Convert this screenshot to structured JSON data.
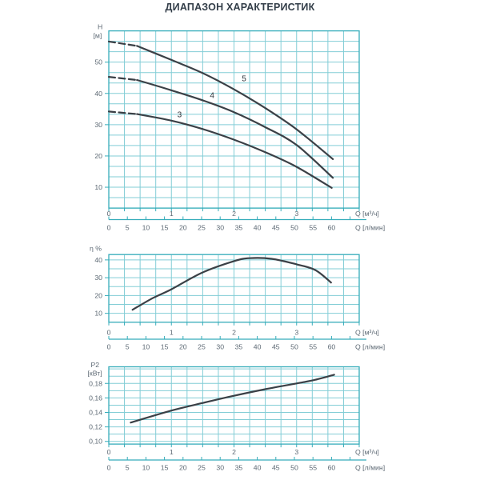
{
  "title": "ДИАПАЗОН ХАРАКТЕРИСТИК",
  "colors": {
    "background": "#ffffff",
    "grid": "#82cdd6",
    "frame": "#35acba",
    "tick_text": "#5d6974",
    "curve": "#3b4046",
    "curve_label": "#2e343b",
    "title_text": "#333e49"
  },
  "chart_data": [
    {
      "type": "line",
      "id": "head",
      "ylabel": "H [м]",
      "ylabel_lines": [
        "H",
        "[м]"
      ],
      "ylim": [
        3.33,
        60
      ],
      "yticks": [
        {
          "value": 10,
          "label": "10"
        },
        {
          "value": 20,
          "label": "20"
        },
        {
          "value": 30,
          "label": "30"
        },
        {
          "value": 40,
          "label": "40"
        },
        {
          "value": 50,
          "label": "50"
        }
      ],
      "xlim": [
        0,
        4
      ],
      "x_minor_step": 0.25,
      "xticks_m3h": [
        0,
        1,
        2,
        3
      ],
      "xlabel_m3h": "Q [м³/ч]",
      "xticks_lmin": [
        0,
        5,
        10,
        15,
        20,
        25,
        30,
        35,
        40,
        45,
        50,
        55,
        60
      ],
      "xlabel_lmin": "Q [л/мин]",
      "grid": true,
      "series": [
        {
          "name": "5",
          "label": "5",
          "label_at": [
            2.16,
            44.5
          ],
          "dashed_points": [
            [
              0,
              56.6
            ],
            [
              0.45,
              55.2
            ]
          ],
          "points": [
            [
              0.45,
              55.2
            ],
            [
              1,
              50.7
            ],
            [
              1.5,
              46.5
            ],
            [
              2,
              41.3
            ],
            [
              2.5,
              35.3
            ],
            [
              3,
              28.5
            ],
            [
              3.58,
              19
            ]
          ]
        },
        {
          "name": "4",
          "label": "4",
          "label_at": [
            1.65,
            39.2
          ],
          "dashed_points": [
            [
              0,
              45.3
            ],
            [
              0.45,
              44.3
            ]
          ],
          "points": [
            [
              0.45,
              44.3
            ],
            [
              1,
              41
            ],
            [
              1.5,
              37.8
            ],
            [
              2,
              34
            ],
            [
              2.5,
              29.2
            ],
            [
              3,
              23.5
            ],
            [
              3.58,
              13
            ]
          ]
        },
        {
          "name": "3",
          "label": "3",
          "label_at": [
            1.13,
            33
          ],
          "dashed_points": [
            [
              0,
              34.2
            ],
            [
              0.45,
              33.4
            ]
          ],
          "points": [
            [
              0.45,
              33.4
            ],
            [
              1,
              31.3
            ],
            [
              1.5,
              28.6
            ],
            [
              2,
              25.2
            ],
            [
              2.5,
              21.2
            ],
            [
              3,
              16.5
            ],
            [
              3.56,
              9.8
            ]
          ]
        }
      ]
    },
    {
      "type": "line",
      "id": "efficiency",
      "ylabel": "η %",
      "ylabel_lines": [
        "η %"
      ],
      "ylim": [
        5,
        43
      ],
      "yticks": [
        {
          "value": 10,
          "label": "10"
        },
        {
          "value": 20,
          "label": "20"
        },
        {
          "value": 30,
          "label": "30"
        },
        {
          "value": 40,
          "label": "40"
        }
      ],
      "xlim": [
        0,
        4
      ],
      "x_minor_step": 0.25,
      "xticks_m3h": [
        0,
        1,
        2,
        3
      ],
      "xlabel_m3h": "Q [м³/ч]",
      "xticks_lmin": [
        0,
        5,
        10,
        15,
        20,
        25,
        30,
        35,
        40,
        45,
        50,
        55,
        60
      ],
      "xlabel_lmin": "Q [л/мин]",
      "grid": true,
      "series": [
        {
          "name": "efficiency-curve",
          "label": "",
          "points": [
            [
              0.38,
              12
            ],
            [
              0.7,
              18.5
            ],
            [
              1,
              23.5
            ],
            [
              1.5,
              33
            ],
            [
              2,
              39.3
            ],
            [
              2.25,
              41
            ],
            [
              2.6,
              40.6
            ],
            [
              3,
              37.5
            ],
            [
              3.3,
              34.3
            ],
            [
              3.55,
              27.3
            ]
          ]
        }
      ]
    },
    {
      "type": "line",
      "id": "power",
      "ylabel": "P2 [кВт]",
      "ylabel_lines": [
        "P2",
        "[кВт]"
      ],
      "ylim": [
        0.0963,
        0.2029
      ],
      "yticks": [
        {
          "value": 0.1,
          "label": "0,10"
        },
        {
          "value": 0.12,
          "label": "0,12"
        },
        {
          "value": 0.14,
          "label": "0,14"
        },
        {
          "value": 0.16,
          "label": "0,16"
        },
        {
          "value": 0.18,
          "label": "0,18"
        }
      ],
      "xlim": [
        0,
        4
      ],
      "x_minor_step": 0.25,
      "xticks_m3h": [
        0,
        1,
        2,
        3
      ],
      "xlabel_m3h": "Q [м³/ч]",
      "xticks_lmin": [
        0,
        5,
        10,
        15,
        20,
        25,
        30,
        35,
        40,
        45,
        50,
        55,
        60
      ],
      "xlabel_lmin": "Q [л/мин]",
      "grid": true,
      "series": [
        {
          "name": "power-curve",
          "label": "",
          "points": [
            [
              0.35,
              0.126
            ],
            [
              1,
              0.1425
            ],
            [
              1.5,
              0.153
            ],
            [
              2,
              0.163
            ],
            [
              2.5,
              0.172
            ],
            [
              3,
              0.18
            ],
            [
              3.3,
              0.185
            ],
            [
              3.6,
              0.192
            ]
          ]
        }
      ]
    }
  ]
}
